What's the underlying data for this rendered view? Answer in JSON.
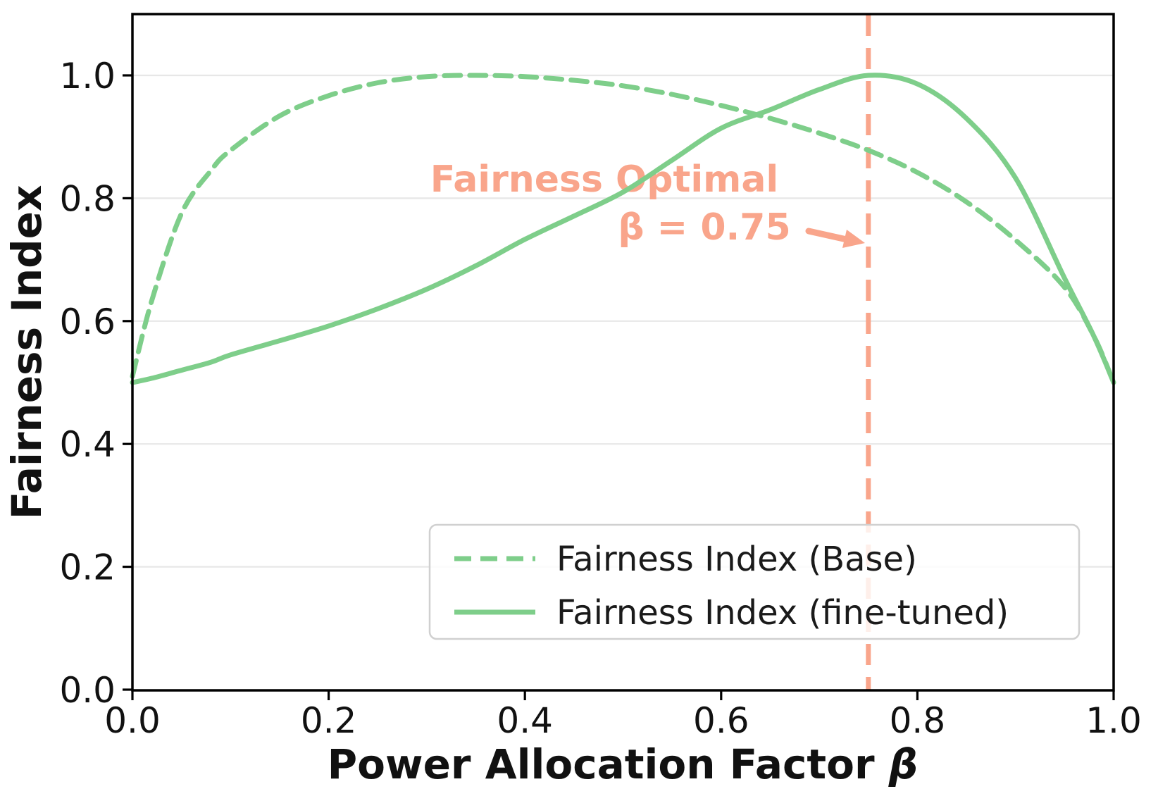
{
  "figure": {
    "ylabel": "Fairness Index",
    "xlabel_main": "Power Allocation Factor ",
    "xlabel_symbol": "β"
  },
  "chart_data": {
    "type": "line",
    "title": "",
    "xlabel": "Power Allocation Factor β",
    "ylabel": "Fairness Index",
    "xlim": [
      0,
      1
    ],
    "ylim": [
      0,
      1.1
    ],
    "xticks": [
      0.0,
      0.2,
      0.4,
      0.6,
      0.8,
      1.0
    ],
    "yticks": [
      0.0,
      0.2,
      0.4,
      0.6,
      0.8,
      1.0
    ],
    "xtick_labels": [
      "0.0",
      "0.2",
      "0.4",
      "0.6",
      "0.8",
      "1.0"
    ],
    "ytick_labels": [
      "0.0",
      "0.2",
      "0.4",
      "0.6",
      "0.8",
      "1.0"
    ],
    "grid": true,
    "grid_color": "#e7e7e7",
    "line_color": "#7ECE8A",
    "x": [
      0,
      0.02,
      0.05,
      0.08,
      0.1,
      0.15,
      0.2,
      0.25,
      0.3,
      0.35,
      0.4,
      0.45,
      0.5,
      0.55,
      0.6,
      0.65,
      0.7,
      0.75,
      0.8,
      0.85,
      0.9,
      0.95,
      0.98,
      1.0
    ],
    "series": [
      {
        "name": "Fairness Index (Base)",
        "style": "dashed",
        "color": "#7ECE8A",
        "values": [
          0.51,
          0.635,
          0.775,
          0.845,
          0.878,
          0.934,
          0.967,
          0.988,
          0.998,
          1.0,
          0.998,
          0.992,
          0.983,
          0.969,
          0.951,
          0.93,
          0.906,
          0.878,
          0.842,
          0.794,
          0.732,
          0.655,
          0.575,
          0.5
        ]
      },
      {
        "name": "Fairness Index (fine-tuned)",
        "style": "solid",
        "color": "#7ECE8A",
        "values": [
          0.5,
          0.507,
          0.52,
          0.533,
          0.545,
          0.568,
          0.592,
          0.62,
          0.652,
          0.69,
          0.733,
          0.771,
          0.81,
          0.862,
          0.914,
          0.944,
          0.977,
          1.0,
          0.986,
          0.93,
          0.833,
          0.67,
          0.575,
          0.5
        ]
      }
    ],
    "legend": {
      "position": "lower right",
      "entries": [
        "Fairness Index (Base)",
        "Fairness Index (fine-tuned)"
      ]
    },
    "annotation": {
      "line1": "Fairness Optimal",
      "line2": "β = 0.75",
      "arrow": "→",
      "color": "#F9A58B",
      "vline_x": 0.75,
      "vline_style": "dashed"
    }
  }
}
